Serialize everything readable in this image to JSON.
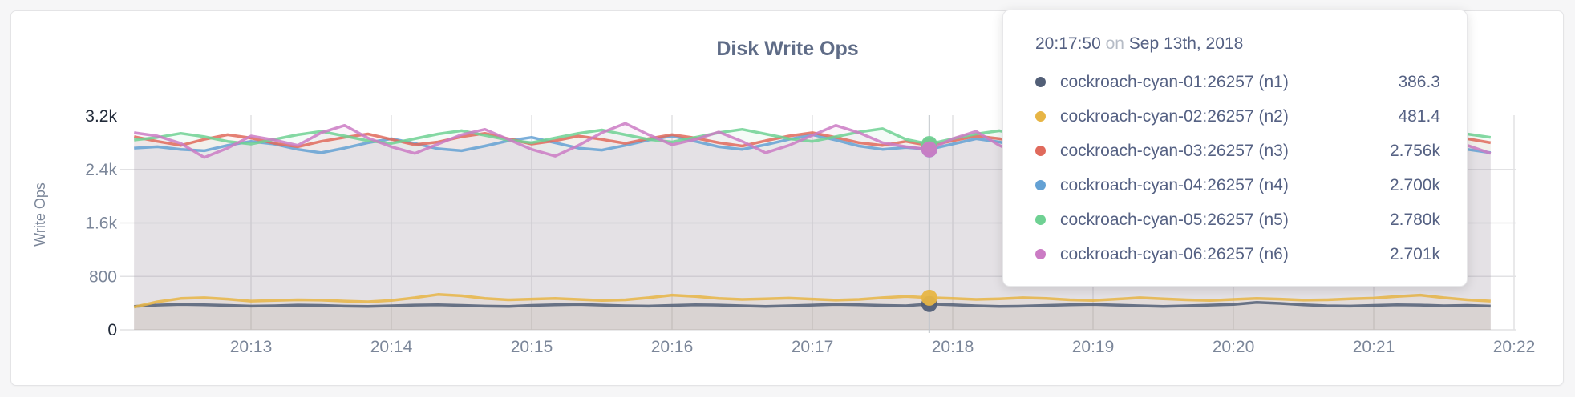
{
  "page": {
    "background_color": "#f6f6f7",
    "card_background_color": "#ffffff"
  },
  "chart": {
    "title": "Disk Write Ops",
    "y_axis_label": "Write Ops",
    "grid_color": "#e2e2e4",
    "hover_line_color": "#c2c6cc",
    "y_ticks": [
      {
        "label": "0",
        "value": 0,
        "emphasis": true
      },
      {
        "label": "800",
        "value": 800,
        "emphasis": false
      },
      {
        "label": "1.6k",
        "value": 1600,
        "emphasis": false
      },
      {
        "label": "2.4k",
        "value": 2400,
        "emphasis": false
      },
      {
        "label": "3.2k",
        "value": 3200,
        "emphasis": true
      }
    ],
    "x_ticks": [
      "20:13",
      "20:14",
      "20:15",
      "20:16",
      "20:17",
      "20:18",
      "20:19",
      "20:20",
      "20:21",
      "20:22"
    ]
  },
  "tooltip": {
    "time": "20:17:50",
    "connector": "on",
    "date": "Sep 13th, 2018",
    "rows": [
      {
        "name": "cockroach-cyan-01:26257 (n1)",
        "value": "386.3",
        "color": "#525f77"
      },
      {
        "name": "cockroach-cyan-02:26257 (n2)",
        "value": "481.4",
        "color": "#e7b545"
      },
      {
        "name": "cockroach-cyan-03:26257 (n3)",
        "value": "2.756k",
        "color": "#e06a5c"
      },
      {
        "name": "cockroach-cyan-04:26257 (n4)",
        "value": "2.700k",
        "color": "#64a1d4"
      },
      {
        "name": "cockroach-cyan-05:26257 (n5)",
        "value": "2.780k",
        "color": "#6fd193"
      },
      {
        "name": "cockroach-cyan-06:26257 (n6)",
        "value": "2.701k",
        "color": "#cb7bc4"
      }
    ]
  },
  "chart_data": {
    "type": "line",
    "title": "Disk Write Ops",
    "xlabel": "",
    "ylabel": "Write Ops",
    "ylim": [
      0,
      3200
    ],
    "y_tick_values": [
      0,
      800,
      1600,
      2400,
      3200
    ],
    "x_tick_labels": [
      "20:13",
      "20:14",
      "20:15",
      "20:16",
      "20:17",
      "20:18",
      "20:19",
      "20:20",
      "20:21",
      "20:22"
    ],
    "x_start_time": "20:12:10",
    "x_end_time": "20:21:50",
    "x_interval_seconds": 10,
    "grid": true,
    "legend_position": "tooltip",
    "hover_index": 34,
    "hover_time": "20:17:50",
    "hover_date": "Sep 13th, 2018",
    "series": [
      {
        "name": "cockroach-cyan-01:26257 (n1)",
        "color": "#525f77",
        "hover_value": 386.3,
        "values": [
          350,
          370,
          380,
          375,
          365,
          355,
          360,
          370,
          365,
          355,
          350,
          360,
          370,
          375,
          365,
          355,
          350,
          365,
          375,
          380,
          370,
          360,
          355,
          365,
          375,
          370,
          360,
          350,
          360,
          370,
          380,
          375,
          365,
          360,
          386.3,
          375,
          360,
          350,
          355,
          365,
          375,
          380,
          370,
          360,
          350,
          360,
          370,
          380,
          410,
          395,
          375,
          360,
          355,
          365,
          375,
          370,
          360,
          365,
          355
        ]
      },
      {
        "name": "cockroach-cyan-02:26257 (n2)",
        "color": "#e7b545",
        "hover_value": 481.4,
        "values": [
          340,
          420,
          470,
          480,
          460,
          430,
          440,
          450,
          445,
          430,
          420,
          440,
          480,
          530,
          510,
          470,
          450,
          460,
          470,
          455,
          440,
          450,
          480,
          520,
          500,
          470,
          455,
          465,
          475,
          460,
          445,
          455,
          480,
          500,
          481.4,
          470,
          455,
          465,
          480,
          470,
          450,
          440,
          460,
          480,
          465,
          450,
          440,
          455,
          470,
          460,
          445,
          450,
          465,
          475,
          500,
          520,
          480,
          450,
          430
        ]
      },
      {
        "name": "cockroach-cyan-03:26257 (n3)",
        "color": "#e06a5c",
        "hover_value": 2756,
        "values": [
          2890,
          2820,
          2760,
          2850,
          2920,
          2870,
          2790,
          2740,
          2820,
          2880,
          2930,
          2850,
          2770,
          2810,
          2890,
          2940,
          2860,
          2780,
          2830,
          2900,
          2850,
          2790,
          2860,
          2920,
          2870,
          2800,
          2750,
          2830,
          2900,
          2950,
          2880,
          2800,
          2760,
          2820,
          2756,
          2830,
          2900,
          2860,
          2790,
          2740,
          2810,
          2880,
          2930,
          2850,
          2780,
          2830,
          2890,
          2940,
          2870,
          2800,
          2750,
          2820,
          2890,
          2850,
          2780,
          2840,
          2900,
          2860,
          2800
        ]
      },
      {
        "name": "cockroach-cyan-04:26257 (n4)",
        "color": "#64a1d4",
        "hover_value": 2700,
        "values": [
          2720,
          2740,
          2700,
          2680,
          2760,
          2820,
          2780,
          2700,
          2650,
          2720,
          2800,
          2860,
          2790,
          2710,
          2680,
          2750,
          2830,
          2880,
          2800,
          2720,
          2690,
          2760,
          2840,
          2900,
          2820,
          2740,
          2700,
          2770,
          2850,
          2920,
          2840,
          2750,
          2700,
          2730,
          2700,
          2780,
          2860,
          2810,
          2730,
          2680,
          2740,
          2820,
          2880,
          2800,
          2720,
          2690,
          2760,
          2830,
          2790,
          2710,
          2670,
          2730,
          2810,
          2770,
          2700,
          2750,
          2820,
          2700,
          2650
        ]
      },
      {
        "name": "cockroach-cyan-05:26257 (n5)",
        "color": "#6fd193",
        "hover_value": 2780,
        "values": [
          2840,
          2880,
          2940,
          2890,
          2820,
          2780,
          2850,
          2920,
          2970,
          2900,
          2830,
          2790,
          2860,
          2930,
          2980,
          2910,
          2840,
          2800,
          2870,
          2940,
          2990,
          2920,
          2850,
          2810,
          2880,
          2950,
          3000,
          2930,
          2860,
          2820,
          2890,
          2960,
          3010,
          2850,
          2780,
          2860,
          2930,
          2980,
          2900,
          2830,
          2800,
          2870,
          2940,
          2890,
          2820,
          2790,
          2860,
          2920,
          2970,
          2900,
          2840,
          2810,
          2880,
          2950,
          2900,
          2830,
          2870,
          2930,
          2880
        ]
      },
      {
        "name": "cockroach-cyan-06:26257 (n6)",
        "color": "#cb7bc4",
        "hover_value": 2701,
        "values": [
          2950,
          2900,
          2790,
          2580,
          2720,
          2900,
          2840,
          2760,
          2950,
          3060,
          2870,
          2740,
          2640,
          2780,
          2920,
          3000,
          2850,
          2700,
          2600,
          2760,
          2950,
          3090,
          2920,
          2770,
          2850,
          2960,
          2820,
          2650,
          2760,
          2910,
          3060,
          2950,
          2800,
          2740,
          2701,
          2860,
          2970,
          2760,
          2590,
          2700,
          2870,
          2960,
          2810,
          2690,
          2600,
          2760,
          2920,
          3010,
          2860,
          2740,
          2640,
          2800,
          2960,
          3100,
          2940,
          2790,
          2680,
          2760,
          2640
        ]
      }
    ]
  }
}
